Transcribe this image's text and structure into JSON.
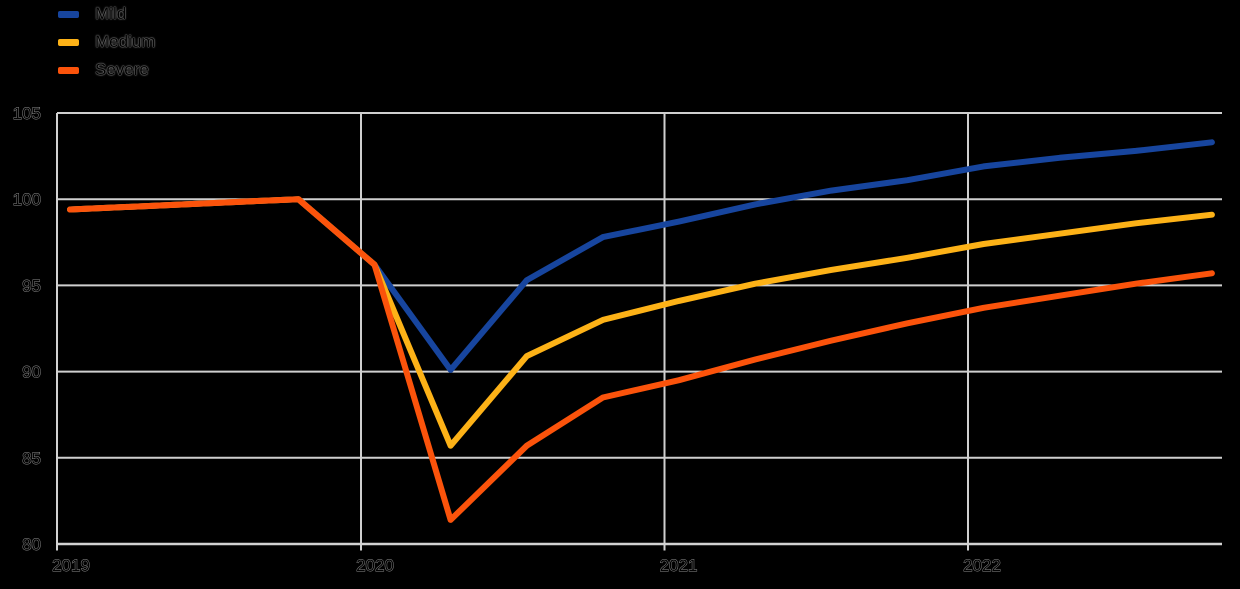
{
  "chart_data": {
    "type": "line",
    "title": "",
    "legend_position": "top-left",
    "grid": true,
    "ylim": [
      80,
      105
    ],
    "y_tick_labels": [
      "105",
      "100",
      "95",
      "90",
      "85",
      "80"
    ],
    "y_tick_values": [
      105,
      100,
      95,
      90,
      85,
      80
    ],
    "x_tick_labels": [
      "2019",
      "2020",
      "2021",
      "2022"
    ],
    "x_categories": [
      "2019 Q1",
      "2019 Q2",
      "2019 Q3",
      "2019 Q4",
      "2020 Q1",
      "2020 Q2",
      "2020 Q3",
      "2020 Q4",
      "2021 Q1",
      "2021 Q2",
      "2021 Q3",
      "2021 Q4",
      "2022 Q1",
      "2022 Q2",
      "2022 Q3",
      "2022 Q4"
    ],
    "series": [
      {
        "name": "Mild",
        "color": "#17459E",
        "values": [
          99.4,
          99.6,
          99.8,
          100.0,
          96.2,
          90.1,
          95.3,
          97.8,
          98.7,
          99.7,
          100.5,
          101.1,
          101.9,
          102.4,
          102.8,
          103.3
        ]
      },
      {
        "name": "Medium",
        "color": "#FDB217",
        "values": [
          99.4,
          99.6,
          99.8,
          100.0,
          96.2,
          85.7,
          90.9,
          93.0,
          94.1,
          95.1,
          95.9,
          96.6,
          97.4,
          98.0,
          98.6,
          99.1
        ]
      },
      {
        "name": "Severe",
        "color": "#FB530B",
        "values": [
          99.4,
          99.6,
          99.8,
          100.0,
          96.2,
          81.4,
          85.7,
          88.5,
          89.5,
          90.7,
          91.8,
          92.8,
          93.7,
          94.4,
          95.1,
          95.7
        ]
      }
    ],
    "colors": {
      "background": "#000000",
      "gridline": "#CFCFCF",
      "axis": "#D2D2D2",
      "tick_label_fill": "#000000",
      "tick_label_halo": "#8F8F8F"
    }
  }
}
